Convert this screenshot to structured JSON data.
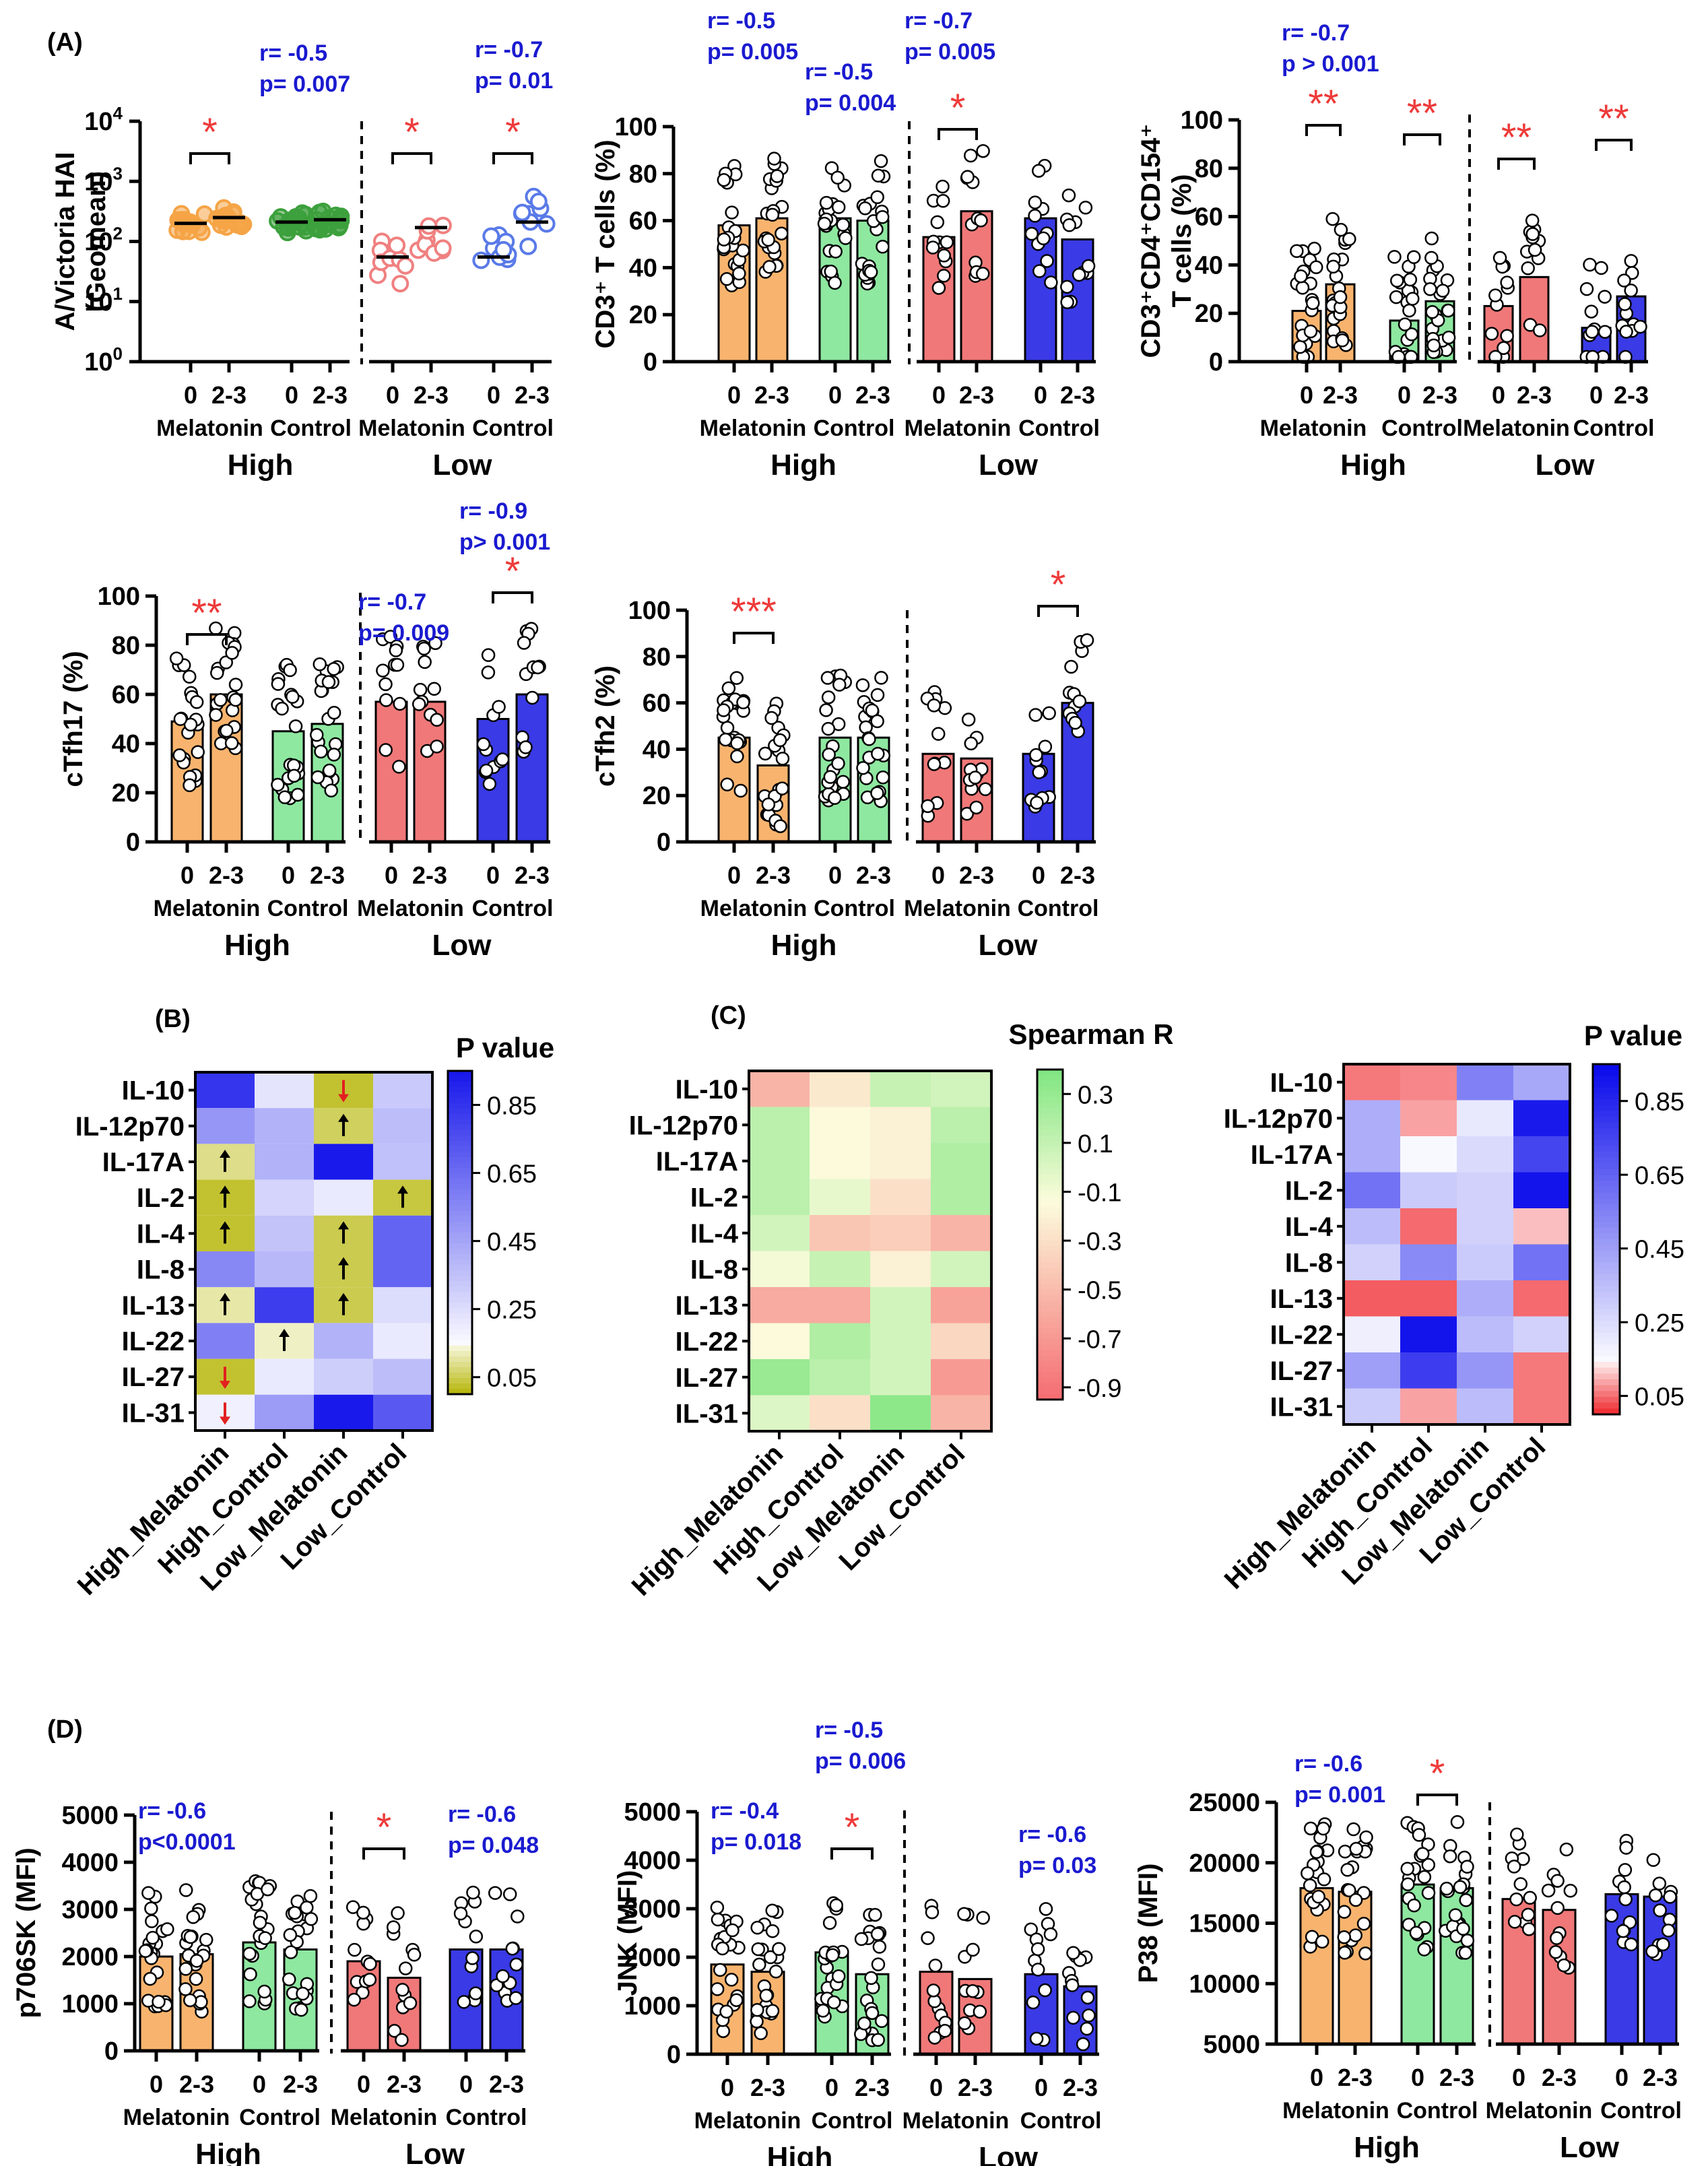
{
  "panel_labels": {
    "A": "(A)",
    "B": "(B)",
    "C": "(C)",
    "D": "(D)"
  },
  "colors": {
    "melatonin_high": "#f8b46e",
    "control_high": "#8ee8a0",
    "melatonin_low": "#f07878",
    "control_low": "#3a3ae6",
    "hai_melatonin_high": "#f5a446",
    "hai_control_high": "#3ca03c",
    "hai_melatonin_low": "#f08080",
    "hai_control_low": "#5a7ae8",
    "stat_blue": "#1a1ad0",
    "sig_red": "#ee3a3a"
  },
  "chart_data": [
    {
      "id": "hai",
      "type": "scatter",
      "ylabel": [
        "A/Victoria HAI",
        "(Geomean)"
      ],
      "yticks": [
        "10^0",
        "10^1",
        "10^2",
        "10^3",
        "10^4"
      ],
      "scale": "log",
      "ylim": [
        0,
        4
      ],
      "time_labels": [
        "0",
        "2-3"
      ],
      "group_labels": [
        "Melatonin",
        "Control",
        "Melatonin",
        "Control"
      ],
      "level_labels": [
        "High",
        "Low"
      ],
      "means": [
        200,
        250,
        210,
        230,
        55,
        170,
        55,
        210
      ],
      "significance": [
        {
          "pair": 0,
          "label": "*"
        },
        {
          "pair": 2,
          "label": "*"
        },
        {
          "pair": 3,
          "label": "*"
        }
      ],
      "stats": [
        {
          "lines": [
            "r= -0.5",
            "p= 0.007"
          ],
          "over": 1
        },
        {
          "lines": [
            "r= -0.7",
            "p= 0.01"
          ],
          "over": 3
        }
      ]
    },
    {
      "id": "cd3",
      "type": "bar",
      "ylabel": [
        "CD3⁺ T cells (%)"
      ],
      "yticks": [
        "0",
        "20",
        "40",
        "60",
        "80",
        "100"
      ],
      "ylim": [
        0,
        100
      ],
      "time_labels": [
        "0",
        "2-3"
      ],
      "group_labels": [
        "Melatonin",
        "Control",
        "Melatonin",
        "Control"
      ],
      "level_labels": [
        "High",
        "Low"
      ],
      "values": [
        58,
        61,
        61,
        60,
        53,
        64,
        61,
        52
      ],
      "significance": [
        {
          "pair": 2,
          "label": "*"
        }
      ],
      "stats": [
        {
          "lines": [
            "r= -0.5",
            "p= 0.005"
          ],
          "over": 0
        },
        {
          "lines": [
            "r= -0.5",
            "p= 0.004"
          ],
          "over": 1
        },
        {
          "lines": [
            "r= -0.7",
            "p= 0.005"
          ],
          "over": 2
        }
      ]
    },
    {
      "id": "cd154",
      "type": "bar",
      "ylabel": [
        "CD3⁺CD4⁺CD154⁺",
        "T cells (%)"
      ],
      "yticks": [
        "0",
        "20",
        "40",
        "60",
        "80",
        "100"
      ],
      "ylim": [
        0,
        100
      ],
      "time_labels": [
        "0",
        "2-3"
      ],
      "group_labels": [
        "Melatonin",
        "Control",
        "Melatonin",
        "Control"
      ],
      "level_labels": [
        "High",
        "Low"
      ],
      "values": [
        21,
        32,
        17,
        25,
        23,
        35,
        14,
        27
      ],
      "significance": [
        {
          "pair": 0,
          "label": "**"
        },
        {
          "pair": 1,
          "label": "**"
        },
        {
          "pair": 2,
          "label": "**"
        },
        {
          "pair": 3,
          "label": "**"
        }
      ],
      "stats": [
        {
          "lines": [
            "r= -0.7",
            "p > 0.001"
          ],
          "over": 0
        }
      ]
    },
    {
      "id": "tfh17",
      "type": "bar",
      "ylabel": [
        "cTfh17 (%)"
      ],
      "yticks": [
        "0",
        "20",
        "40",
        "60",
        "80",
        "100"
      ],
      "ylim": [
        0,
        100
      ],
      "time_labels": [
        "0",
        "2-3"
      ],
      "group_labels": [
        "Melatonin",
        "Control",
        "Melatonin",
        "Control"
      ],
      "level_labels": [
        "High",
        "Low"
      ],
      "values": [
        49,
        60,
        45,
        48,
        57,
        57,
        50,
        60
      ],
      "significance": [
        {
          "pair": 0,
          "label": "**"
        },
        {
          "pair": 3,
          "label": "*"
        }
      ],
      "stats": [
        {
          "lines": [
            "r= -0.7",
            "p= 0.009"
          ],
          "over": 2
        },
        {
          "lines": [
            "r= -0.9",
            "p> 0.001"
          ],
          "over": 3
        }
      ]
    },
    {
      "id": "tfh2",
      "type": "bar",
      "ylabel": [
        "cTfh2 (%)"
      ],
      "yticks": [
        "0",
        "20",
        "40",
        "60",
        "80",
        "100"
      ],
      "ylim": [
        0,
        100
      ],
      "time_labels": [
        "0",
        "2-3"
      ],
      "group_labels": [
        "Melatonin",
        "Control",
        "Melatonin",
        "Control"
      ],
      "level_labels": [
        "High",
        "Low"
      ],
      "values": [
        45,
        33,
        45,
        45,
        38,
        36,
        38,
        60
      ],
      "significance": [
        {
          "pair": 0,
          "label": "***"
        },
        {
          "pair": 3,
          "label": "*"
        }
      ],
      "stats": []
    },
    {
      "id": "p70",
      "type": "bar",
      "ylabel": [
        "p706SK (MFI)"
      ],
      "yticks": [
        "0",
        "1000",
        "2000",
        "3000",
        "4000",
        "5000"
      ],
      "ylim": [
        0,
        5000
      ],
      "time_labels": [
        "0",
        "2-3"
      ],
      "group_labels": [
        "Melatonin",
        "Control",
        "Melatonin",
        "Control"
      ],
      "level_labels": [
        "High",
        "Low"
      ],
      "values": [
        2000,
        2050,
        2300,
        2150,
        1900,
        1550,
        2150,
        2150
      ],
      "significance": [
        {
          "pair": 2,
          "label": "*"
        }
      ],
      "stats": [
        {
          "lines": [
            "r= -0.6",
            "p<0.0001"
          ],
          "over": 0
        },
        {
          "lines": [
            "r= -0.6",
            "p= 0.048"
          ],
          "over": 3
        }
      ]
    },
    {
      "id": "jnk",
      "type": "bar",
      "ylabel": [
        "JNK (MFI)"
      ],
      "yticks": [
        "0",
        "1000",
        "2000",
        "3000",
        "4000",
        "5000"
      ],
      "ylim": [
        0,
        5000
      ],
      "time_labels": [
        "0",
        "2-3"
      ],
      "group_labels": [
        "Melatonin",
        "Control",
        "Melatonin",
        "Control"
      ],
      "level_labels": [
        "High",
        "Low"
      ],
      "values": [
        1850,
        1700,
        2100,
        1650,
        1700,
        1550,
        1650,
        1400
      ],
      "significance": [
        {
          "pair": 1,
          "label": "*"
        }
      ],
      "stats": [
        {
          "lines": [
            "r= -0.4",
            "p= 0.018"
          ],
          "over": 0
        },
        {
          "lines": [
            "r= -0.5",
            "p= 0.006"
          ],
          "over": 1
        },
        {
          "lines": [
            "r= -0.6",
            "p= 0.03"
          ],
          "over": 3
        }
      ]
    },
    {
      "id": "p38",
      "type": "bar",
      "ylabel": [
        "P38 (MFI)"
      ],
      "yticks": [
        "5000",
        "10000",
        "15000",
        "20000",
        "25000"
      ],
      "ylim": [
        5000,
        25000
      ],
      "time_labels": [
        "0",
        "2-3"
      ],
      "group_labels": [
        "Melatonin",
        "Control",
        "Melatonin",
        "Control"
      ],
      "level_labels": [
        "High",
        "Low"
      ],
      "values": [
        17900,
        17600,
        18200,
        17900,
        17000,
        16100,
        17400,
        17200
      ],
      "significance": [
        {
          "pair": 1,
          "label": "*"
        }
      ],
      "stats": [
        {
          "lines": [
            "r= -0.6",
            "p= 0.001"
          ],
          "over": 0
        }
      ]
    },
    {
      "id": "heat_b",
      "type": "heatmap",
      "title": "P value",
      "rows": [
        "IL-10",
        "IL-12p70",
        "IL-17A",
        "IL-2",
        "IL-4",
        "IL-8",
        "IL-13",
        "IL-22",
        "IL-27",
        "IL-31"
      ],
      "columns": [
        "High_Melatonin",
        "High_Control",
        "Low_Melatonin",
        "Low_Control"
      ],
      "values": [
        [
          0.85,
          0.22,
          0.02,
          0.32
        ],
        [
          0.5,
          0.4,
          0.05,
          0.36
        ],
        [
          0.08,
          0.4,
          0.95,
          0.35
        ],
        [
          0.02,
          0.28,
          0.2,
          0.03
        ],
        [
          0.02,
          0.34,
          0.04,
          0.68
        ],
        [
          0.55,
          0.38,
          0.04,
          0.68
        ],
        [
          0.1,
          0.82,
          0.04,
          0.25
        ],
        [
          0.58,
          0.12,
          0.4,
          0.2
        ],
        [
          0.02,
          0.2,
          0.3,
          0.36
        ],
        [
          0.18,
          0.48,
          0.95,
          0.72
        ]
      ],
      "arrows": [
        {
          "r": 0,
          "c": 2,
          "dir": "down"
        },
        {
          "r": 1,
          "c": 2,
          "dir": "up"
        },
        {
          "r": 2,
          "c": 0,
          "dir": "up"
        },
        {
          "r": 3,
          "c": 0,
          "dir": "up"
        },
        {
          "r": 3,
          "c": 3,
          "dir": "up"
        },
        {
          "r": 4,
          "c": 0,
          "dir": "up"
        },
        {
          "r": 4,
          "c": 2,
          "dir": "up"
        },
        {
          "r": 5,
          "c": 2,
          "dir": "up"
        },
        {
          "r": 6,
          "c": 0,
          "dir": "up"
        },
        {
          "r": 6,
          "c": 2,
          "dir": "up"
        },
        {
          "r": 7,
          "c": 1,
          "dir": "up"
        },
        {
          "r": 8,
          "c": 0,
          "dir": "down"
        },
        {
          "r": 9,
          "c": 0,
          "dir": "down"
        }
      ],
      "colorbar_ticks": [
        "0.85",
        "0.65",
        "0.45",
        "0.25",
        "0.05"
      ],
      "colorbar_range": [
        0.0,
        0.95
      ]
    },
    {
      "id": "heat_c1",
      "type": "heatmap",
      "title": "Spearman R",
      "rows": [
        "IL-10",
        "IL-12p70",
        "IL-17A",
        "IL-2",
        "IL-4",
        "IL-8",
        "IL-13",
        "IL-22",
        "IL-27",
        "IL-31"
      ],
      "columns": [
        "High_Melatonin",
        "High_Control",
        "Low_Melatonin",
        "Low_Control"
      ],
      "values": [
        [
          -0.55,
          -0.25,
          0.1,
          0.05
        ],
        [
          0.15,
          -0.15,
          -0.2,
          0.15
        ],
        [
          0.15,
          -0.15,
          -0.2,
          0.2
        ],
        [
          0.15,
          -0.05,
          -0.3,
          0.2
        ],
        [
          0.05,
          -0.45,
          -0.4,
          -0.55
        ],
        [
          -0.1,
          0.1,
          -0.2,
          0.05
        ],
        [
          -0.6,
          -0.6,
          0.05,
          -0.65
        ],
        [
          -0.15,
          0.2,
          0.05,
          -0.35
        ],
        [
          0.3,
          0.15,
          0.05,
          -0.7
        ],
        [
          0.0,
          -0.3,
          0.35,
          -0.55
        ]
      ],
      "colorbar_ticks": [
        "0.3",
        "0.1",
        "-0.1",
        "-0.3",
        "-0.5",
        "-0.7",
        "-0.9"
      ],
      "colorbar_range": [
        -0.95,
        0.4
      ]
    },
    {
      "id": "heat_c2",
      "type": "heatmap",
      "title": "P value",
      "rows": [
        "IL-10",
        "IL-12p70",
        "IL-17A",
        "IL-2",
        "IL-4",
        "IL-8",
        "IL-13",
        "IL-22",
        "IL-27",
        "IL-31"
      ],
      "columns": [
        "High_Melatonin",
        "High_Control",
        "Low_Melatonin",
        "Low_Control"
      ],
      "values": [
        [
          0.05,
          0.06,
          0.55,
          0.42
        ],
        [
          0.4,
          0.08,
          0.2,
          0.9
        ],
        [
          0.4,
          0.15,
          0.25,
          0.75
        ],
        [
          0.6,
          0.3,
          0.28,
          0.92
        ],
        [
          0.35,
          0.04,
          0.28,
          0.1
        ],
        [
          0.28,
          0.52,
          0.3,
          0.6
        ],
        [
          0.03,
          0.03,
          0.4,
          0.04
        ],
        [
          0.18,
          0.92,
          0.35,
          0.28
        ],
        [
          0.45,
          0.78,
          0.48,
          0.05
        ],
        [
          0.3,
          0.08,
          0.35,
          0.05
        ]
      ],
      "colorbar_ticks": [
        "0.85",
        "0.65",
        "0.45",
        "0.25",
        "0.05"
      ],
      "colorbar_range": [
        0.0,
        0.95
      ]
    }
  ]
}
